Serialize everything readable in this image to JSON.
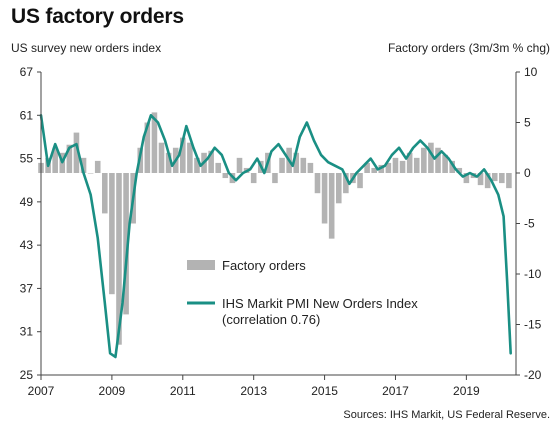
{
  "chart_data": {
    "type": "bar+line",
    "title": "US factory orders",
    "ylabel_left": "US survey new orders index",
    "ylabel_right": "Factory orders (3m/3m % chg)",
    "source": "Sources: IHS Markit, US Federal Reserve.",
    "x_ticks": [
      "2007",
      "2009",
      "2011",
      "2013",
      "2015",
      "2017",
      "2019"
    ],
    "x_range": [
      2007.0,
      2020.4
    ],
    "y_left_range": [
      25,
      67
    ],
    "y_left_ticks": [
      "67",
      "61",
      "55",
      "49",
      "43",
      "37",
      "31",
      "25"
    ],
    "y_right_range": [
      -20,
      10
    ],
    "y_right_ticks": [
      "10",
      "5",
      "0",
      "-5",
      "-10",
      "-15",
      "-20"
    ],
    "colors": {
      "bars": "#b3b3b3",
      "line": "#1a8f84",
      "axis": "#444444"
    },
    "legend": {
      "position": "center",
      "bars_label": "Factory orders",
      "line_label": "IHS Markit PMI New Orders Index",
      "line_label_2": "(correlation 0.76)"
    },
    "series": [
      {
        "name": "Factory orders",
        "kind": "bar",
        "axis": "right",
        "t": [
          2007.0,
          2007.2,
          2007.4,
          2007.6,
          2007.8,
          2008.0,
          2008.2,
          2008.4,
          2008.6,
          2008.8,
          2009.0,
          2009.2,
          2009.4,
          2009.6,
          2009.8,
          2010.0,
          2010.2,
          2010.4,
          2010.6,
          2010.8,
          2011.0,
          2011.2,
          2011.4,
          2011.6,
          2011.8,
          2012.0,
          2012.2,
          2012.4,
          2012.6,
          2012.8,
          2013.0,
          2013.2,
          2013.4,
          2013.6,
          2013.8,
          2014.0,
          2014.2,
          2014.4,
          2014.6,
          2014.8,
          2015.0,
          2015.2,
          2015.4,
          2015.6,
          2015.8,
          2016.0,
          2016.2,
          2016.4,
          2016.6,
          2016.8,
          2017.0,
          2017.2,
          2017.4,
          2017.6,
          2017.8,
          2018.0,
          2018.2,
          2018.4,
          2018.6,
          2018.8,
          2019.0,
          2019.2,
          2019.4,
          2019.6,
          2019.8,
          2020.0,
          2020.2
        ],
        "values": [
          1.0,
          1.5,
          2.5,
          2.0,
          2.8,
          4.0,
          1.5,
          0.0,
          1.2,
          -4.0,
          -12.0,
          -17.0,
          -14.0,
          -5.0,
          2.5,
          5.0,
          6.0,
          3.0,
          2.0,
          2.5,
          3.5,
          3.0,
          1.5,
          2.0,
          2.2,
          1.0,
          -0.5,
          -1.0,
          1.5,
          0.5,
          -1.0,
          1.2,
          2.0,
          -1.0,
          1.5,
          2.5,
          2.0,
          1.5,
          1.0,
          -2.0,
          -5.0,
          -6.5,
          -3.0,
          -2.0,
          -1.0,
          -1.5,
          1.0,
          0.5,
          0.8,
          1.0,
          1.5,
          1.2,
          2.0,
          1.5,
          2.5,
          3.0,
          2.5,
          1.8,
          1.2,
          0.5,
          -1.0,
          -0.5,
          -1.2,
          -1.5,
          -0.8,
          -1.0,
          -1.5
        ]
      },
      {
        "name": "IHS Markit PMI New Orders Index",
        "kind": "line",
        "axis": "left",
        "t": [
          2007.0,
          2007.2,
          2007.4,
          2007.6,
          2007.8,
          2008.0,
          2008.2,
          2008.4,
          2008.6,
          2008.8,
          2008.95,
          2009.1,
          2009.3,
          2009.5,
          2009.7,
          2009.9,
          2010.1,
          2010.3,
          2010.5,
          2010.7,
          2010.9,
          2011.1,
          2011.3,
          2011.5,
          2011.7,
          2011.9,
          2012.1,
          2012.3,
          2012.5,
          2012.7,
          2012.9,
          2013.1,
          2013.3,
          2013.5,
          2013.7,
          2013.9,
          2014.1,
          2014.3,
          2014.5,
          2014.7,
          2014.9,
          2015.1,
          2015.3,
          2015.5,
          2015.7,
          2015.9,
          2016.1,
          2016.3,
          2016.5,
          2016.7,
          2016.9,
          2017.1,
          2017.3,
          2017.5,
          2017.7,
          2017.9,
          2018.1,
          2018.3,
          2018.5,
          2018.7,
          2018.9,
          2019.1,
          2019.3,
          2019.5,
          2019.7,
          2019.9,
          2020.05,
          2020.15,
          2020.25
        ],
        "values": [
          61.0,
          54.0,
          57.0,
          54.5,
          56.5,
          57.0,
          53.0,
          50.0,
          44.0,
          35.0,
          28.0,
          27.5,
          35.0,
          46.0,
          53.0,
          58.0,
          61.0,
          60.0,
          57.5,
          54.0,
          55.5,
          59.5,
          56.5,
          54.0,
          55.0,
          56.5,
          55.5,
          53.0,
          52.0,
          53.0,
          53.5,
          55.0,
          53.0,
          56.0,
          57.0,
          55.5,
          54.0,
          58.0,
          60.0,
          57.5,
          55.5,
          54.5,
          54.0,
          53.5,
          51.5,
          53.0,
          54.0,
          55.0,
          53.5,
          54.0,
          55.5,
          56.5,
          55.0,
          56.5,
          57.5,
          56.5,
          55.0,
          56.0,
          55.0,
          53.5,
          52.5,
          53.0,
          52.5,
          53.5,
          52.0,
          50.0,
          47.0,
          38.0,
          28.0
        ]
      }
    ]
  }
}
